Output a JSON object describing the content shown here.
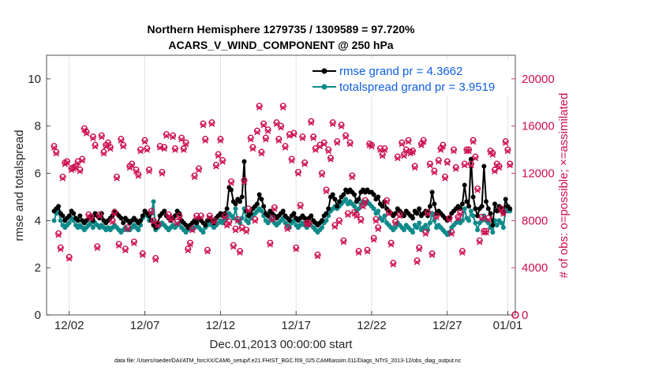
{
  "chart_data": {
    "type": "line",
    "title_line1": "Northern Hemisphere 1279735 / 1309589 = 97.720%",
    "title_line2": "ACARS_V_WIND_COMPONENT @ 250 hPa",
    "xlabel": "Dec.01,2013 00:00:00 start",
    "ylabel": "rmse and totalspread",
    "y2label": "# of obs: o=possible; ×=assimilated",
    "footer": "data file: /Users/raeder/DAI/ATM_forcXX/CAM6_setup/f.e21.FHIST_BGC.f09_025.CAM6assim.011/Diags_NTrS_2013-12/obs_diag_output.nc",
    "xlim": [
      -0.5,
      30.5
    ],
    "ylim": [
      0,
      11
    ],
    "y2lim": [
      0,
      22000
    ],
    "xticks": [
      {
        "value": 1,
        "label": "12/02"
      },
      {
        "value": 6,
        "label": "12/07"
      },
      {
        "value": 11,
        "label": "12/12"
      },
      {
        "value": 16,
        "label": "12/17"
      },
      {
        "value": 21,
        "label": "12/22"
      },
      {
        "value": 26,
        "label": "12/27"
      },
      {
        "value": 30,
        "label": "01/01"
      }
    ],
    "yticks": [
      0,
      2,
      4,
      6,
      8,
      10
    ],
    "y2ticks": [
      0,
      4000,
      8000,
      12000,
      16000,
      20000
    ],
    "colors": {
      "rmse": "#000000",
      "spread": "#0e8a8a",
      "obs": "#cc0e4e",
      "legend_text": "#1060e0"
    },
    "series": [
      {
        "name": "rmse grand pr = 4.3662",
        "key": "rmse",
        "values": [
          4.4,
          4.5,
          4.6,
          4.3,
          4.2,
          4.0,
          4.1,
          4.2,
          4.4,
          4.3,
          4.1,
          4.0,
          4.2,
          4.0,
          3.9,
          4.0,
          4.1,
          4.2,
          4.0,
          4.3,
          4.2,
          4.1,
          4.3,
          4.0,
          3.9,
          4.0,
          4.1,
          4.2,
          4.4,
          4.3,
          4.2,
          4.1,
          3.9,
          4.1,
          4.0,
          3.9,
          4.0,
          4.1,
          4.0,
          3.9,
          4.0,
          4.2,
          4.4,
          4.3,
          4.2,
          4.0,
          3.8,
          3.7,
          3.9,
          4.2,
          4.3,
          4.4,
          4.2,
          4.1,
          4.0,
          4.1,
          4.2,
          4.4,
          4.3,
          4.0,
          3.9,
          3.8,
          3.7,
          3.8,
          3.9,
          4.0,
          3.9,
          4.1,
          4.0,
          3.9,
          3.8,
          4.0,
          4.1,
          4.0,
          3.9,
          4.1,
          4.2,
          4.3,
          4.2,
          4.3,
          4.5,
          5.4,
          5.3,
          4.8,
          4.7,
          4.9,
          4.8,
          5.0,
          6.5,
          4.4,
          4.2,
          4.3,
          4.5,
          4.6,
          4.7,
          5.1,
          4.9,
          4.6,
          4.3,
          4.2,
          4.4,
          4.3,
          4.2,
          4.1,
          4.2,
          4.3,
          4.4,
          4.2,
          4.1,
          4.0,
          4.2,
          4.3,
          4.1,
          4.0,
          4.1,
          4.2,
          4.1,
          4.0,
          4.1,
          4.2,
          4.0,
          3.9,
          3.8,
          3.9,
          4.0,
          4.2,
          4.3,
          4.5,
          5.0,
          5.1,
          4.9,
          4.6,
          4.8,
          5.0,
          5.1,
          5.3,
          5.2,
          5.3,
          5.2,
          5.1,
          4.8,
          4.9,
          5.2,
          5.3,
          5.2,
          5.3,
          5.2,
          5.2,
          5.1,
          4.9,
          5.0,
          4.7,
          4.6,
          4.8,
          4.5,
          4.4,
          4.3,
          4.2,
          4.3,
          4.5,
          4.4,
          4.3,
          4.2,
          4.4,
          4.3,
          4.2,
          4.1,
          4.4,
          4.3,
          4.5,
          4.2,
          4.3,
          4.4,
          4.2,
          4.6,
          5.2,
          4.7,
          4.3,
          4.4,
          4.3,
          4.2,
          4.1,
          4.0,
          4.1,
          4.3,
          4.4,
          4.5,
          4.6,
          4.5,
          4.7,
          5.5,
          4.8,
          4.6,
          6.6,
          5.0,
          4.5,
          4.2,
          4.5,
          4.6,
          6.3,
          4.8,
          4.5,
          4.3,
          3.8,
          4.7,
          4.4,
          4.6,
          4.5,
          4.3,
          4.9,
          4.6,
          4.5
        ]
      },
      {
        "name": "totalspread grand pr = 3.9519",
        "key": "spread",
        "values": [
          4.0,
          4.3,
          4.4,
          4.0,
          3.8,
          3.7,
          3.8,
          3.9,
          4.1,
          4.0,
          3.8,
          3.7,
          3.8,
          3.7,
          3.6,
          3.7,
          3.8,
          3.9,
          3.7,
          3.9,
          3.8,
          3.7,
          3.8,
          3.7,
          3.6,
          3.7,
          3.6,
          3.7,
          3.8,
          3.7,
          3.6,
          3.5,
          3.6,
          3.7,
          3.6,
          3.6,
          3.7,
          3.8,
          3.7,
          3.6,
          3.8,
          4.1,
          4.4,
          4.2,
          4.0,
          4.3,
          4.8,
          3.6,
          3.7,
          3.8,
          3.9,
          3.8,
          3.7,
          3.6,
          3.7,
          3.8,
          3.7,
          3.8,
          3.9,
          3.7,
          3.6,
          3.5,
          3.6,
          3.7,
          3.6,
          3.7,
          3.8,
          3.7,
          3.6,
          3.5,
          3.7,
          3.8,
          3.9,
          3.8,
          3.7,
          3.8,
          3.9,
          4.0,
          3.9,
          4.0,
          4.1,
          4.3,
          4.2,
          4.1,
          4.5,
          4.0,
          3.9,
          4.1,
          4.5,
          4.0,
          3.9,
          4.1,
          4.2,
          4.3,
          4.4,
          4.5,
          4.4,
          4.2,
          4.0,
          3.9,
          4.1,
          4.0,
          3.9,
          3.8,
          3.9,
          4.0,
          4.1,
          3.9,
          3.8,
          3.7,
          3.9,
          4.0,
          3.8,
          3.7,
          3.8,
          3.9,
          3.8,
          3.7,
          3.8,
          3.9,
          3.7,
          3.6,
          3.5,
          3.6,
          3.7,
          3.9,
          4.0,
          4.2,
          4.4,
          4.5,
          4.6,
          4.5,
          4.6,
          4.7,
          4.8,
          4.9,
          4.7,
          4.8,
          4.7,
          4.6,
          4.4,
          4.5,
          4.7,
          4.8,
          4.7,
          4.8,
          4.7,
          4.6,
          4.5,
          4.3,
          4.4,
          4.1,
          4.0,
          4.2,
          3.9,
          3.8,
          3.7,
          3.6,
          3.7,
          3.9,
          3.8,
          3.7,
          3.6,
          3.8,
          3.7,
          3.6,
          3.5,
          3.8,
          3.7,
          3.9,
          3.6,
          3.7,
          3.8,
          3.6,
          3.9,
          4.3,
          4.0,
          3.7,
          3.8,
          3.7,
          3.6,
          3.5,
          3.4,
          3.5,
          3.7,
          3.8,
          3.9,
          4.0,
          3.9,
          4.0,
          4.5,
          4.1,
          4.0,
          4.4,
          4.2,
          3.9,
          3.6,
          3.9,
          4.0,
          4.2,
          4.0,
          3.9,
          3.7,
          3.5,
          4.0,
          3.8,
          4.0,
          3.9,
          3.7,
          4.5,
          4.4,
          4.4
        ]
      },
      {
        "name": "# of obs possible",
        "key": "obs",
        "values": [
          14300,
          13800,
          6900,
          5700,
          11700,
          12900,
          13000,
          4900,
          12400,
          12500,
          12600,
          13000,
          12300,
          13200,
          15800,
          15500,
          8500,
          8300,
          15100,
          14400,
          5800,
          8500,
          15200,
          13800,
          14400,
          14600,
          14200,
          8000,
          8700,
          11700,
          6000,
          14900,
          14400,
          5600,
          7400,
          12600,
          12800,
          6200,
          12300,
          11900,
          14000,
          5200,
          14800,
          14100,
          12300,
          8800,
          8000,
          4800,
          7700,
          14300,
          12100,
          14200,
          15300,
          8500,
          8200,
          15200,
          14100,
          7900,
          8400,
          15000,
          14100,
          14600,
          5600,
          6100,
          7300,
          11800,
          8400,
          12400,
          8400,
          16200,
          14900,
          5500,
          8400,
          16300,
          8000,
          12700,
          13600,
          14900,
          13100,
          8400,
          7700,
          7900,
          11300,
          5900,
          7300,
          8100,
          5400,
          7400,
          11400,
          7200,
          9000,
          15000,
          14200,
          8100,
          15600,
          17700,
          13800,
          16200,
          15000,
          15700,
          6100,
          8200,
          9100,
          16300,
          14900,
          16000,
          17700,
          14300,
          7400,
          15300,
          13200,
          15400,
          5700,
          12100,
          9300,
          15100,
          12900,
          7800,
          7800,
          16400,
          15100,
          14100,
          5100,
          14400,
          12000,
          14600,
          10600,
          14000,
          13300,
          16300,
          7600,
          14700,
          8000,
          16100,
          6300,
          15200,
          8600,
          14600,
          11800,
          8700,
          8500,
          5400,
          8100,
          9300,
          9700,
          5500,
          14500,
          14400,
          6500,
          8100,
          7400,
          14100,
          13600,
          14100,
          9700,
          8700,
          6100,
          4400,
          7900,
          13400,
          8500,
          14600,
          13600,
          14000,
          14800,
          13800,
          13900,
          12600,
          4600,
          5700,
          14500,
          14800,
          7000,
          8700,
          12800,
          5200,
          12200,
          8400,
          13100,
          14100,
          14400,
          11700,
          13000,
          8200,
          7000,
          14000,
          12500,
          8300,
          8700,
          5400,
          12800,
          14000,
          14000,
          12800,
          14800,
          13400,
          10700,
          6300,
          8300,
          7100,
          7100,
          8200,
          13900,
          13700,
          12300,
          12800,
          12600,
          9000,
          8700,
          14700,
          14000,
          12800
        ]
      }
    ]
  }
}
